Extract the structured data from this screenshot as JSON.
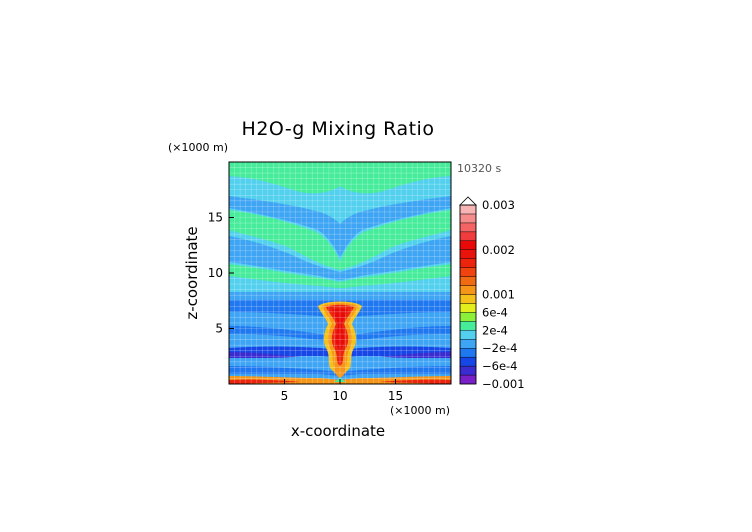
{
  "chart_data": {
    "type": "heatmap",
    "title": "H2O-g Mixing Ratio",
    "time_label": "10320 s",
    "xlabel": "x-coordinate",
    "ylabel": "z-coordinate",
    "x_unit": "(×1000 m)",
    "y_unit": "(×1000 m)",
    "xlim": [
      0,
      20
    ],
    "ylim": [
      0,
      20
    ],
    "x_ticks": [
      5,
      10,
      15
    ],
    "y_ticks": [
      5,
      10,
      15
    ],
    "grid": true,
    "colorbar": {
      "levels": [
        -0.001,
        -0.0008,
        -0.0006,
        -0.0004,
        -0.0002,
        0,
        0.0002,
        0.0004,
        0.0006,
        0.0008,
        0.001,
        0.0012,
        0.0014,
        0.0016,
        0.0018,
        0.002,
        0.0022,
        0.0024,
        0.0026,
        0.0028,
        0.003
      ],
      "labels": [
        {
          "value": 0.003,
          "text": "0.003"
        },
        {
          "value": 0.002,
          "text": "0.002"
        },
        {
          "value": 0.001,
          "text": "0.001"
        },
        {
          "value": 0.0006,
          "text": "6e-4"
        },
        {
          "value": 0.0002,
          "text": "2e-4"
        },
        {
          "value": -0.0002,
          "text": "−2e-4"
        },
        {
          "value": -0.0006,
          "text": "−6e-4"
        },
        {
          "value": -0.001,
          "text": "−0.001"
        }
      ],
      "colors": [
        "#7a20c8",
        "#3a2cd0",
        "#1646e6",
        "#1f78f0",
        "#3ea4f4",
        "#52d0ee",
        "#46ec9a",
        "#8cf03a",
        "#e4ee1c",
        "#f6c01a",
        "#f69618",
        "#f06a14",
        "#f04410",
        "#ec240e",
        "#e8140c",
        "#e80a08",
        "#f03c3c",
        "#f46464",
        "#f48c8c",
        "#f6b4b4"
      ]
    },
    "field_description_layers": [
      {
        "z_range": [
          0,
          0.3
        ],
        "feature": "surface layer, orange-red band"
      },
      {
        "z_range": [
          0.3,
          7.5
        ],
        "feature": "central moist column near x=10, peak ~0.002"
      },
      {
        "z_range": [
          7.5,
          20
        ],
        "feature": "alternating blue/cyan/green bands"
      }
    ]
  }
}
